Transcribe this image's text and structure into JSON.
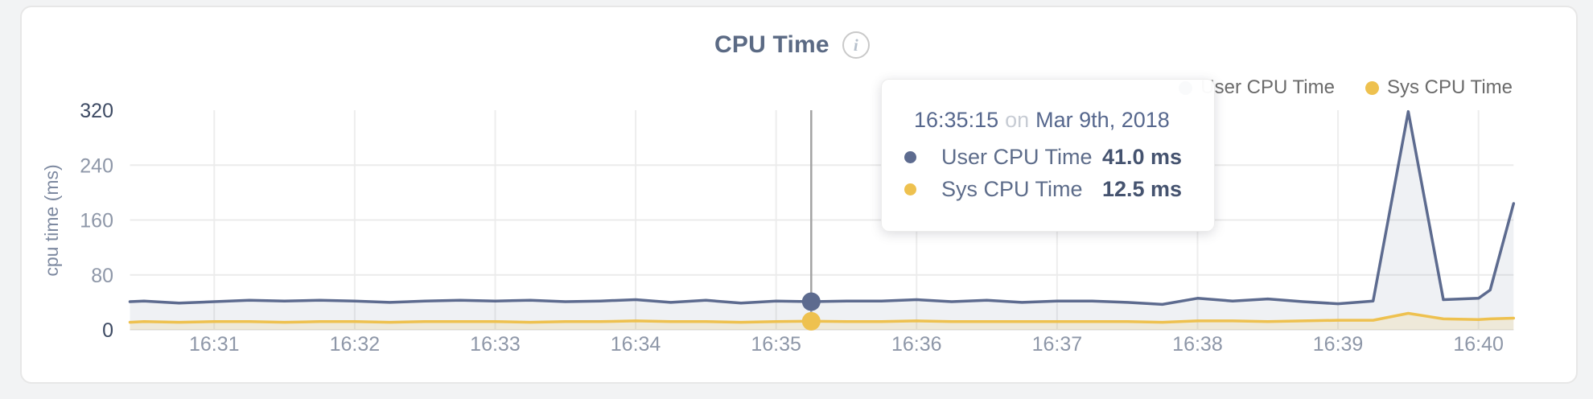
{
  "header": {
    "title": "CPU Time",
    "info_icon": "i"
  },
  "legend": {
    "items": [
      {
        "label": "User CPU Time",
        "color": "#5d6b8f"
      },
      {
        "label": "Sys CPU Time",
        "color": "#eec14f"
      }
    ]
  },
  "tooltip": {
    "time": "16:35:15",
    "conjunction": "on",
    "date": "Mar 9th, 2018",
    "rows": [
      {
        "label": "User CPU Time",
        "value": "41.0 ms",
        "color": "#5d6b8f"
      },
      {
        "label": "Sys CPU Time",
        "value": "12.5 ms",
        "color": "#eec14f"
      }
    ],
    "hover_time": "16:35:15"
  },
  "chart_data": {
    "type": "area",
    "title": "CPU Time",
    "ylabel": "cpu time (ms)",
    "ylim": [
      0,
      320
    ],
    "y_ticks": [
      {
        "value": 320,
        "label": "320",
        "major": true
      },
      {
        "value": 240,
        "label": "240",
        "major": false
      },
      {
        "value": 160,
        "label": "160",
        "major": false
      },
      {
        "value": 80,
        "label": "80",
        "major": false
      },
      {
        "value": 0,
        "label": "0",
        "major": true
      }
    ],
    "x_ticks": [
      "16:31",
      "16:32",
      "16:33",
      "16:34",
      "16:35",
      "16:36",
      "16:37",
      "16:38",
      "16:39",
      "16:40"
    ],
    "x_range": [
      "16:30:24",
      "16:40:15"
    ],
    "grid": true,
    "legend_position": "top-right",
    "colors": {
      "grid_h": "#ebebeb",
      "grid_v": "#ededed",
      "hover_line": "#a3a3a3",
      "tick_major": "#3d4a63",
      "tick_minor": "#8e97a8",
      "axis_title": "#7d89a0"
    },
    "series": [
      {
        "name": "User CPU Time",
        "color": "#5d6b8f",
        "fill": "rgba(101,115,150,0.10)",
        "points": [
          [
            "16:30:24",
            41
          ],
          [
            "16:30:30",
            42
          ],
          [
            "16:30:45",
            39
          ],
          [
            "16:31:00",
            41
          ],
          [
            "16:31:15",
            43
          ],
          [
            "16:31:30",
            42
          ],
          [
            "16:31:45",
            43
          ],
          [
            "16:32:00",
            42
          ],
          [
            "16:32:15",
            40
          ],
          [
            "16:32:30",
            42
          ],
          [
            "16:32:45",
            43
          ],
          [
            "16:33:00",
            42
          ],
          [
            "16:33:15",
            43
          ],
          [
            "16:33:30",
            41
          ],
          [
            "16:33:45",
            42
          ],
          [
            "16:34:00",
            44
          ],
          [
            "16:34:15",
            40
          ],
          [
            "16:34:30",
            43
          ],
          [
            "16:34:45",
            39
          ],
          [
            "16:35:00",
            42
          ],
          [
            "16:35:15",
            41
          ],
          [
            "16:35:30",
            42
          ],
          [
            "16:35:45",
            42
          ],
          [
            "16:36:00",
            44
          ],
          [
            "16:36:15",
            41
          ],
          [
            "16:36:30",
            43
          ],
          [
            "16:36:45",
            40
          ],
          [
            "16:37:00",
            42
          ],
          [
            "16:37:15",
            42
          ],
          [
            "16:37:30",
            40
          ],
          [
            "16:37:45",
            37
          ],
          [
            "16:38:00",
            46
          ],
          [
            "16:38:15",
            42
          ],
          [
            "16:38:30",
            45
          ],
          [
            "16:38:45",
            41
          ],
          [
            "16:39:00",
            38
          ],
          [
            "16:39:15",
            42
          ],
          [
            "16:39:30",
            318
          ],
          [
            "16:39:45",
            44
          ],
          [
            "16:40:00",
            46
          ],
          [
            "16:40:05",
            58
          ],
          [
            "16:40:15",
            184
          ]
        ]
      },
      {
        "name": "Sys CPU Time",
        "color": "#eec14f",
        "fill": "rgba(235,195,80,0.16)",
        "points": [
          [
            "16:30:24",
            11
          ],
          [
            "16:30:30",
            12
          ],
          [
            "16:30:45",
            11
          ],
          [
            "16:31:00",
            12
          ],
          [
            "16:31:15",
            12
          ],
          [
            "16:31:30",
            11
          ],
          [
            "16:31:45",
            12
          ],
          [
            "16:32:00",
            12
          ],
          [
            "16:32:15",
            11
          ],
          [
            "16:32:30",
            12
          ],
          [
            "16:32:45",
            12
          ],
          [
            "16:33:00",
            12
          ],
          [
            "16:33:15",
            11
          ],
          [
            "16:33:30",
            12
          ],
          [
            "16:33:45",
            12
          ],
          [
            "16:34:00",
            13
          ],
          [
            "16:34:15",
            12
          ],
          [
            "16:34:30",
            12
          ],
          [
            "16:34:45",
            11
          ],
          [
            "16:35:00",
            12
          ],
          [
            "16:35:15",
            12.5
          ],
          [
            "16:35:30",
            12
          ],
          [
            "16:35:45",
            12
          ],
          [
            "16:36:00",
            13
          ],
          [
            "16:36:15",
            12
          ],
          [
            "16:36:30",
            12
          ],
          [
            "16:36:45",
            12
          ],
          [
            "16:37:00",
            12
          ],
          [
            "16:37:15",
            12
          ],
          [
            "16:37:30",
            12
          ],
          [
            "16:37:45",
            11
          ],
          [
            "16:38:00",
            13
          ],
          [
            "16:38:15",
            13
          ],
          [
            "16:38:30",
            12
          ],
          [
            "16:38:45",
            13
          ],
          [
            "16:39:00",
            14
          ],
          [
            "16:39:15",
            14
          ],
          [
            "16:39:30",
            24
          ],
          [
            "16:39:45",
            16
          ],
          [
            "16:40:00",
            15
          ],
          [
            "16:40:05",
            16
          ],
          [
            "16:40:15",
            17
          ]
        ]
      }
    ]
  }
}
